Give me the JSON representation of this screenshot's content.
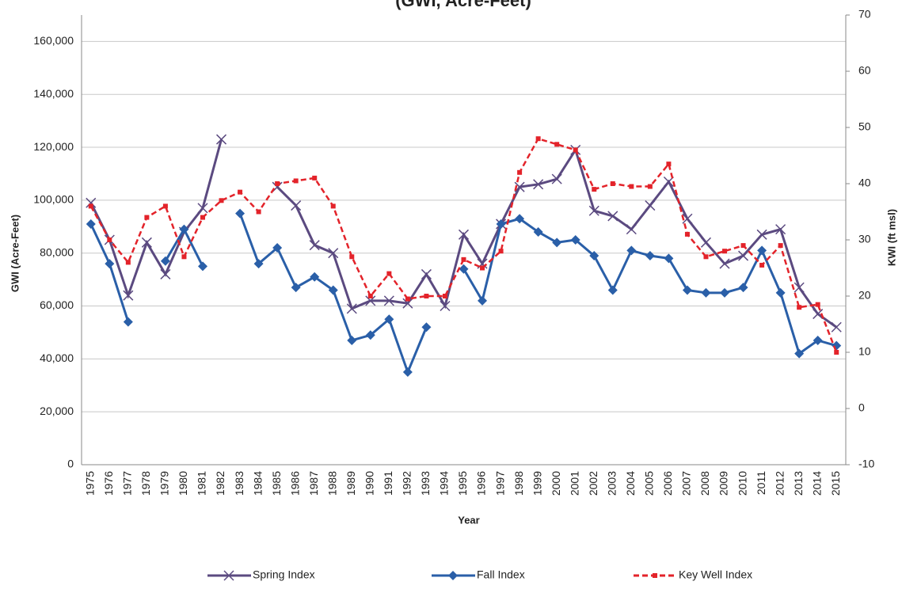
{
  "chart_data": {
    "type": "line",
    "title": "(GWI, Acre-Feet)",
    "x_label": "Year",
    "y_label": "GWI (Acre-Feet)",
    "y2_label": "KWI (ft msl)",
    "categories": [
      "1975",
      "1976",
      "1977",
      "1978",
      "1979",
      "1980",
      "1981",
      "1982",
      "1983",
      "1984",
      "1985",
      "1986",
      "1987",
      "1988",
      "1989",
      "1990",
      "1991",
      "1992",
      "1993",
      "1994",
      "1995",
      "1996",
      "1997",
      "1998",
      "1999",
      "2000",
      "2001",
      "2002",
      "2003",
      "2004",
      "2005",
      "2006",
      "2007",
      "2008",
      "2009",
      "2010",
      "2011",
      "2012",
      "2013",
      "2014",
      "2015"
    ],
    "ylim": [
      0,
      170000
    ],
    "yticks": [
      0,
      {
        "value": 20000,
        "label": "20,000"
      },
      {
        "value": 40000,
        "label": "40,000"
      },
      {
        "value": 60000,
        "label": "60,000"
      },
      {
        "value": 80000,
        "label": "80,000"
      },
      {
        "value": 100000,
        "label": "100,000"
      },
      {
        "value": 120000,
        "label": "120,000"
      },
      {
        "value": 140000,
        "label": "140,000"
      },
      {
        "value": 160000,
        "label": "160,000"
      }
    ],
    "y2lim": [
      -10,
      70
    ],
    "y2ticks": [
      -10,
      0,
      10,
      20,
      30,
      40,
      50,
      60,
      70
    ],
    "grid": true,
    "legend": "bottom",
    "series": [
      {
        "name": "Spring Index",
        "color": "#5b4a80",
        "marker": "x",
        "dashed": false,
        "values": [
          99000,
          85000,
          64000,
          84000,
          72000,
          88000,
          97000,
          123000,
          null,
          null,
          105000,
          98000,
          83000,
          80000,
          59000,
          62000,
          62000,
          61000,
          72000,
          60000,
          87000,
          76000,
          91000,
          105000,
          106000,
          108000,
          119000,
          96000,
          94000,
          89000,
          98000,
          107000,
          93000,
          84000,
          76000,
          79000,
          87000,
          89000,
          67000,
          57000,
          52000
        ]
      },
      {
        "name": "Fall Index",
        "color": "#2a5fa8",
        "marker": "diamond",
        "dashed": false,
        "values": [
          91000,
          76000,
          54000,
          null,
          77000,
          89000,
          75000,
          null,
          95000,
          76000,
          82000,
          67000,
          71000,
          66000,
          47000,
          49000,
          55000,
          35000,
          52000,
          null,
          74000,
          62000,
          91000,
          93000,
          88000,
          84000,
          85000,
          79000,
          66000,
          81000,
          79000,
          78000,
          66000,
          65000,
          65000,
          67000,
          81000,
          65000,
          42000,
          47000,
          45000
        ]
      },
      {
        "name": "Key Well Index",
        "color": "#e3232a",
        "marker": "square",
        "dashed": true,
        "axis": "y2",
        "values": [
          36,
          30,
          26,
          34,
          36,
          27,
          34,
          37,
          38.5,
          35,
          40,
          40.5,
          41,
          36,
          27,
          20,
          24,
          19.5,
          20,
          20,
          26.5,
          25,
          28,
          42,
          48,
          47,
          46,
          39,
          40,
          39.5,
          39.5,
          43.5,
          31,
          27,
          28,
          29,
          25.5,
          29,
          18,
          18.5,
          10
        ]
      }
    ]
  }
}
